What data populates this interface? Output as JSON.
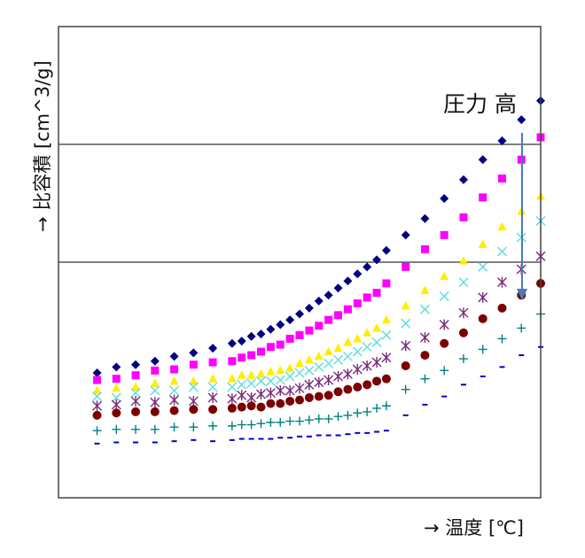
{
  "chart_data": {
    "type": "scatter",
    "title": "",
    "xlabel": "→ 温度 [℃]",
    "ylabel": "→ 比容積 [cm^3/g]",
    "annotation": "圧力 高",
    "x_ticks_visible": false,
    "y_ticks_visible": false,
    "grid_y": [
      1,
      2,
      3
    ],
    "xlim": [
      0,
      25
    ],
    "ylim": [
      -1,
      3
    ],
    "colors": {
      "s1": "#000080",
      "s2": "#ff00ff",
      "s3": "#ffee00",
      "s4": "#66dddd",
      "s5": "#7a2a7a",
      "s6": "#7b0000",
      "s7": "#008080",
      "s8": "#0000cc",
      "arrow": "#4a7ab8",
      "grid": "#000000",
      "frame": "#444444"
    },
    "series": [
      {
        "marker": "diamond",
        "color_key": "s1",
        "points": [
          [
            2,
            0.06
          ],
          [
            3,
            0.11
          ],
          [
            4,
            0.13
          ],
          [
            5,
            0.16
          ],
          [
            6,
            0.2
          ],
          [
            7,
            0.23
          ],
          [
            8,
            0.27
          ],
          [
            9,
            0.31
          ],
          [
            9.5,
            0.33
          ],
          [
            10,
            0.37
          ],
          [
            10.5,
            0.39
          ],
          [
            11,
            0.43
          ],
          [
            11.5,
            0.47
          ],
          [
            12,
            0.51
          ],
          [
            12.5,
            0.56
          ],
          [
            13,
            0.61
          ],
          [
            13.5,
            0.67
          ],
          [
            14,
            0.72
          ],
          [
            14.5,
            0.78
          ],
          [
            15,
            0.84
          ],
          [
            15.5,
            0.9
          ],
          [
            16,
            0.96
          ],
          [
            16.5,
            1.02
          ],
          [
            17,
            1.1
          ],
          [
            18,
            1.23
          ],
          [
            19,
            1.37
          ],
          [
            20,
            1.54
          ],
          [
            21,
            1.7
          ],
          [
            22,
            1.87
          ],
          [
            23,
            2.03
          ],
          [
            24,
            2.21
          ],
          [
            25,
            2.37
          ]
        ]
      },
      {
        "marker": "square",
        "color_key": "s2",
        "points": [
          [
            2,
            0.0
          ],
          [
            3,
            0.01
          ],
          [
            4,
            0.04
          ],
          [
            5,
            0.08
          ],
          [
            6,
            0.09
          ],
          [
            7,
            0.13
          ],
          [
            8,
            0.15
          ],
          [
            9,
            0.16
          ],
          [
            9.5,
            0.19
          ],
          [
            10,
            0.21
          ],
          [
            10.5,
            0.24
          ],
          [
            11,
            0.28
          ],
          [
            11.5,
            0.3
          ],
          [
            12,
            0.35
          ],
          [
            12.5,
            0.38
          ],
          [
            13,
            0.42
          ],
          [
            13.5,
            0.46
          ],
          [
            14,
            0.51
          ],
          [
            14.5,
            0.55
          ],
          [
            15,
            0.6
          ],
          [
            15.5,
            0.65
          ],
          [
            16,
            0.7
          ],
          [
            16.5,
            0.74
          ],
          [
            17,
            0.82
          ],
          [
            18,
            0.96
          ],
          [
            19,
            1.11
          ],
          [
            20,
            1.23
          ],
          [
            21,
            1.38
          ],
          [
            22,
            1.55
          ],
          [
            23,
            1.71
          ],
          [
            24,
            1.87
          ],
          [
            25,
            2.06
          ]
        ]
      },
      {
        "marker": "triangle",
        "color_key": "s3",
        "points": [
          [
            2,
            -0.09
          ],
          [
            3,
            -0.07
          ],
          [
            4,
            -0.06
          ],
          [
            5,
            -0.03
          ],
          [
            6,
            -0.01
          ],
          [
            7,
            -0.01
          ],
          [
            8,
            0.01
          ],
          [
            9,
            0.01
          ],
          [
            9.5,
            0.04
          ],
          [
            10,
            0.04
          ],
          [
            10.5,
            0.05
          ],
          [
            11,
            0.07
          ],
          [
            11.5,
            0.08
          ],
          [
            12,
            0.1
          ],
          [
            12.5,
            0.14
          ],
          [
            13,
            0.17
          ],
          [
            13.5,
            0.2
          ],
          [
            14,
            0.24
          ],
          [
            14.5,
            0.27
          ],
          [
            15,
            0.32
          ],
          [
            15.5,
            0.35
          ],
          [
            16,
            0.4
          ],
          [
            16.5,
            0.44
          ],
          [
            17,
            0.51
          ],
          [
            18,
            0.63
          ],
          [
            19,
            0.76
          ],
          [
            20,
            0.88
          ],
          [
            21,
            1.01
          ],
          [
            22,
            1.15
          ],
          [
            23,
            1.3
          ],
          [
            24,
            1.43
          ],
          [
            25,
            1.56
          ]
        ]
      },
      {
        "marker": "x",
        "color_key": "s4",
        "points": [
          [
            2,
            -0.14
          ],
          [
            3,
            -0.15
          ],
          [
            4,
            -0.11
          ],
          [
            5,
            -0.09
          ],
          [
            6,
            -0.09
          ],
          [
            7,
            -0.06
          ],
          [
            8,
            -0.06
          ],
          [
            9,
            -0.06
          ],
          [
            9.5,
            -0.04
          ],
          [
            10,
            -0.03
          ],
          [
            10.5,
            -0.01
          ],
          [
            11,
            -0.01
          ],
          [
            11.5,
            0.0
          ],
          [
            12,
            0.03
          ],
          [
            12.5,
            0.06
          ],
          [
            13,
            0.08
          ],
          [
            13.5,
            0.11
          ],
          [
            14,
            0.14
          ],
          [
            14.5,
            0.17
          ],
          [
            15,
            0.2
          ],
          [
            15.5,
            0.24
          ],
          [
            16,
            0.28
          ],
          [
            16.5,
            0.32
          ],
          [
            17,
            0.38
          ],
          [
            18,
            0.48
          ],
          [
            19,
            0.6
          ],
          [
            20,
            0.71
          ],
          [
            21,
            0.83
          ],
          [
            22,
            0.96
          ],
          [
            23,
            1.09
          ],
          [
            24,
            1.21
          ],
          [
            25,
            1.35
          ]
        ]
      },
      {
        "marker": "asterisk",
        "color_key": "s5",
        "points": [
          [
            2,
            -0.22
          ],
          [
            3,
            -0.21
          ],
          [
            4,
            -0.18
          ],
          [
            5,
            -0.19
          ],
          [
            6,
            -0.17
          ],
          [
            7,
            -0.18
          ],
          [
            8,
            -0.15
          ],
          [
            9,
            -0.16
          ],
          [
            9.5,
            -0.13
          ],
          [
            10,
            -0.15
          ],
          [
            10.5,
            -0.12
          ],
          [
            11,
            -0.11
          ],
          [
            11.5,
            -0.09
          ],
          [
            12,
            -0.09
          ],
          [
            12.5,
            -0.07
          ],
          [
            13,
            -0.04
          ],
          [
            13.5,
            -0.02
          ],
          [
            14,
            0.0
          ],
          [
            14.5,
            0.03
          ],
          [
            15,
            0.05
          ],
          [
            15.5,
            0.09
          ],
          [
            16,
            0.12
          ],
          [
            16.5,
            0.15
          ],
          [
            17,
            0.19
          ],
          [
            18,
            0.29
          ],
          [
            19,
            0.36
          ],
          [
            20,
            0.47
          ],
          [
            21,
            0.57
          ],
          [
            22,
            0.7
          ],
          [
            23,
            0.83
          ],
          [
            24,
            0.94
          ],
          [
            25,
            1.05
          ]
        ]
      },
      {
        "marker": "circle",
        "color_key": "s6",
        "points": [
          [
            2,
            -0.3
          ],
          [
            3,
            -0.28
          ],
          [
            4,
            -0.27
          ],
          [
            5,
            -0.27
          ],
          [
            6,
            -0.26
          ],
          [
            7,
            -0.25
          ],
          [
            8,
            -0.25
          ],
          [
            9,
            -0.24
          ],
          [
            9.5,
            -0.23
          ],
          [
            10,
            -0.22
          ],
          [
            10.5,
            -0.23
          ],
          [
            11,
            -0.2
          ],
          [
            11.5,
            -0.2
          ],
          [
            12,
            -0.18
          ],
          [
            12.5,
            -0.17
          ],
          [
            13,
            -0.15
          ],
          [
            13.5,
            -0.14
          ],
          [
            14,
            -0.13
          ],
          [
            14.5,
            -0.1
          ],
          [
            15,
            -0.08
          ],
          [
            15.5,
            -0.06
          ],
          [
            16,
            -0.04
          ],
          [
            16.5,
            -0.01
          ],
          [
            17,
            0.01
          ],
          [
            18,
            0.12
          ],
          [
            19,
            0.21
          ],
          [
            20,
            0.31
          ],
          [
            21,
            0.4
          ],
          [
            22,
            0.52
          ],
          [
            23,
            0.61
          ],
          [
            24,
            0.72
          ],
          [
            25,
            0.82
          ]
        ]
      },
      {
        "marker": "plus",
        "color_key": "s7",
        "points": [
          [
            2,
            -0.43
          ],
          [
            3,
            -0.42
          ],
          [
            4,
            -0.42
          ],
          [
            5,
            -0.42
          ],
          [
            6,
            -0.4
          ],
          [
            7,
            -0.4
          ],
          [
            8,
            -0.39
          ],
          [
            9,
            -0.39
          ],
          [
            9.5,
            -0.38
          ],
          [
            10,
            -0.38
          ],
          [
            10.5,
            -0.37
          ],
          [
            11,
            -0.36
          ],
          [
            11.5,
            -0.36
          ],
          [
            12,
            -0.35
          ],
          [
            12.5,
            -0.35
          ],
          [
            13,
            -0.34
          ],
          [
            13.5,
            -0.33
          ],
          [
            14,
            -0.33
          ],
          [
            14.5,
            -0.31
          ],
          [
            15,
            -0.3
          ],
          [
            15.5,
            -0.28
          ],
          [
            16,
            -0.27
          ],
          [
            16.5,
            -0.24
          ],
          [
            17,
            -0.22
          ],
          [
            18,
            -0.08
          ],
          [
            19,
            0.01
          ],
          [
            20,
            0.08
          ],
          [
            21,
            0.18
          ],
          [
            22,
            0.26
          ],
          [
            23,
            0.35
          ],
          [
            24,
            0.44
          ],
          [
            25,
            0.56
          ]
        ]
      },
      {
        "marker": "dash",
        "color_key": "s8",
        "points": [
          [
            2,
            -0.54
          ],
          [
            3,
            -0.53
          ],
          [
            4,
            -0.53
          ],
          [
            5,
            -0.53
          ],
          [
            6,
            -0.52
          ],
          [
            7,
            -0.51
          ],
          [
            8,
            -0.52
          ],
          [
            9,
            -0.51
          ],
          [
            9.5,
            -0.5
          ],
          [
            10,
            -0.5
          ],
          [
            10.5,
            -0.5
          ],
          [
            11,
            -0.5
          ],
          [
            11.5,
            -0.49
          ],
          [
            12,
            -0.49
          ],
          [
            12.5,
            -0.48
          ],
          [
            13,
            -0.48
          ],
          [
            13.5,
            -0.47
          ],
          [
            14,
            -0.47
          ],
          [
            14.5,
            -0.47
          ],
          [
            15,
            -0.46
          ],
          [
            15.5,
            -0.45
          ],
          [
            16,
            -0.45
          ],
          [
            16.5,
            -0.44
          ],
          [
            17,
            -0.43
          ],
          [
            18,
            -0.3
          ],
          [
            19,
            -0.21
          ],
          [
            20,
            -0.14
          ],
          [
            21,
            -0.04
          ],
          [
            22,
            0.03
          ],
          [
            23,
            0.11
          ],
          [
            24,
            0.21
          ],
          [
            25,
            0.28
          ]
        ]
      }
    ]
  }
}
